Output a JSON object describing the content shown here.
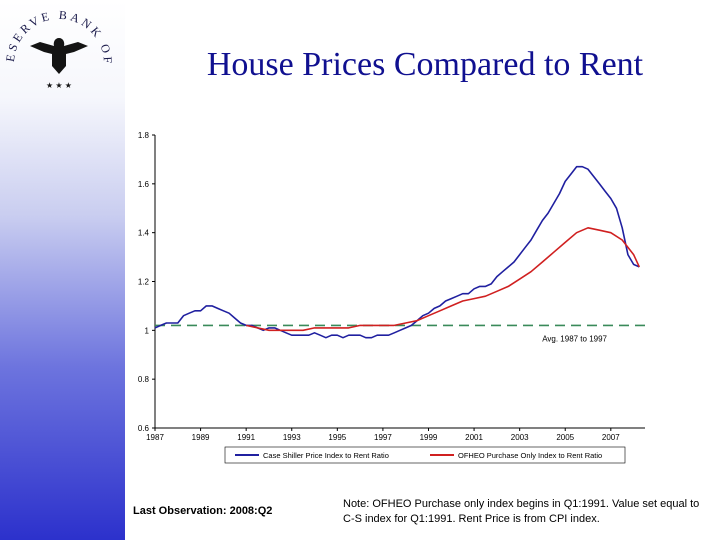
{
  "header": {
    "seal_text": "FEDERAL RESERVE BANK OF ST. LOUIS",
    "title": "House Prices Compared to Rent"
  },
  "chart_data": {
    "type": "line",
    "title": "House Prices Compared to Rent",
    "xlabel": "",
    "ylabel": "",
    "xlim": [
      1987,
      2008.5
    ],
    "ylim": [
      0.6,
      1.8
    ],
    "x_ticks": [
      "1987",
      "1989",
      "1991",
      "1993",
      "1995",
      "1997",
      "1999",
      "2001",
      "2003",
      "2005",
      "2007"
    ],
    "y_ticks": [
      "0.6",
      "0.8",
      "1",
      "1.2",
      "1.4",
      "1.6",
      "1.8"
    ],
    "y_tick_values": [
      0.6,
      0.8,
      1.0,
      1.2,
      1.4,
      1.6,
      1.8
    ],
    "series": [
      {
        "name": "Case Shiller Price Index to Rent Ratio",
        "color": "#2020a0",
        "points": [
          [
            1987.0,
            1.01
          ],
          [
            1987.25,
            1.02
          ],
          [
            1987.5,
            1.03
          ],
          [
            1987.75,
            1.03
          ],
          [
            1988.0,
            1.03
          ],
          [
            1988.25,
            1.06
          ],
          [
            1988.5,
            1.07
          ],
          [
            1988.75,
            1.08
          ],
          [
            1989.0,
            1.08
          ],
          [
            1989.25,
            1.1
          ],
          [
            1989.5,
            1.1
          ],
          [
            1989.75,
            1.09
          ],
          [
            1990.0,
            1.08
          ],
          [
            1990.25,
            1.07
          ],
          [
            1990.5,
            1.05
          ],
          [
            1990.75,
            1.03
          ],
          [
            1991.0,
            1.02
          ],
          [
            1991.25,
            1.02
          ],
          [
            1991.5,
            1.01
          ],
          [
            1991.75,
            1.0
          ],
          [
            1992.0,
            1.01
          ],
          [
            1992.25,
            1.01
          ],
          [
            1992.5,
            1.0
          ],
          [
            1992.75,
            0.99
          ],
          [
            1993.0,
            0.98
          ],
          [
            1993.25,
            0.98
          ],
          [
            1993.5,
            0.98
          ],
          [
            1993.75,
            0.98
          ],
          [
            1994.0,
            0.99
          ],
          [
            1994.25,
            0.98
          ],
          [
            1994.5,
            0.97
          ],
          [
            1994.75,
            0.98
          ],
          [
            1995.0,
            0.98
          ],
          [
            1995.25,
            0.97
          ],
          [
            1995.5,
            0.98
          ],
          [
            1995.75,
            0.98
          ],
          [
            1996.0,
            0.98
          ],
          [
            1996.25,
            0.97
          ],
          [
            1996.5,
            0.97
          ],
          [
            1996.75,
            0.98
          ],
          [
            1997.0,
            0.98
          ],
          [
            1997.25,
            0.98
          ],
          [
            1997.5,
            0.99
          ],
          [
            1997.75,
            1.0
          ],
          [
            1998.0,
            1.01
          ],
          [
            1998.25,
            1.02
          ],
          [
            1998.5,
            1.04
          ],
          [
            1998.75,
            1.06
          ],
          [
            1999.0,
            1.07
          ],
          [
            1999.25,
            1.09
          ],
          [
            1999.5,
            1.1
          ],
          [
            1999.75,
            1.12
          ],
          [
            2000.0,
            1.13
          ],
          [
            2000.25,
            1.14
          ],
          [
            2000.5,
            1.15
          ],
          [
            2000.75,
            1.15
          ],
          [
            2001.0,
            1.17
          ],
          [
            2001.25,
            1.18
          ],
          [
            2001.5,
            1.18
          ],
          [
            2001.75,
            1.19
          ],
          [
            2002.0,
            1.22
          ],
          [
            2002.25,
            1.24
          ],
          [
            2002.5,
            1.26
          ],
          [
            2002.75,
            1.28
          ],
          [
            2003.0,
            1.31
          ],
          [
            2003.25,
            1.34
          ],
          [
            2003.5,
            1.37
          ],
          [
            2003.75,
            1.41
          ],
          [
            2004.0,
            1.45
          ],
          [
            2004.25,
            1.48
          ],
          [
            2004.5,
            1.52
          ],
          [
            2004.75,
            1.56
          ],
          [
            2005.0,
            1.61
          ],
          [
            2005.25,
            1.64
          ],
          [
            2005.5,
            1.67
          ],
          [
            2005.75,
            1.67
          ],
          [
            2006.0,
            1.66
          ],
          [
            2006.25,
            1.63
          ],
          [
            2006.5,
            1.6
          ],
          [
            2006.75,
            1.57
          ],
          [
            2007.0,
            1.54
          ],
          [
            2007.25,
            1.5
          ],
          [
            2007.5,
            1.42
          ],
          [
            2007.75,
            1.31
          ],
          [
            2008.0,
            1.27
          ],
          [
            2008.25,
            1.26
          ]
        ]
      },
      {
        "name": "OFHEO Purchase Only Index to Rent Ratio",
        "color": "#d02020",
        "points": [
          [
            1991.0,
            1.02
          ],
          [
            1991.5,
            1.01
          ],
          [
            1992.0,
            1.0
          ],
          [
            1992.5,
            1.0
          ],
          [
            1993.0,
            1.0
          ],
          [
            1993.5,
            1.0
          ],
          [
            1994.0,
            1.01
          ],
          [
            1994.5,
            1.01
          ],
          [
            1995.0,
            1.01
          ],
          [
            1995.5,
            1.01
          ],
          [
            1996.0,
            1.02
          ],
          [
            1996.5,
            1.02
          ],
          [
            1997.0,
            1.02
          ],
          [
            1997.5,
            1.02
          ],
          [
            1998.0,
            1.03
          ],
          [
            1998.5,
            1.04
          ],
          [
            1999.0,
            1.06
          ],
          [
            1999.5,
            1.08
          ],
          [
            2000.0,
            1.1
          ],
          [
            2000.5,
            1.12
          ],
          [
            2001.0,
            1.13
          ],
          [
            2001.5,
            1.14
          ],
          [
            2002.0,
            1.16
          ],
          [
            2002.5,
            1.18
          ],
          [
            2003.0,
            1.21
          ],
          [
            2003.5,
            1.24
          ],
          [
            2004.0,
            1.28
          ],
          [
            2004.5,
            1.32
          ],
          [
            2005.0,
            1.36
          ],
          [
            2005.5,
            1.4
          ],
          [
            2006.0,
            1.42
          ],
          [
            2006.5,
            1.41
          ],
          [
            2007.0,
            1.4
          ],
          [
            2007.5,
            1.37
          ],
          [
            2008.0,
            1.31
          ],
          [
            2008.25,
            1.26
          ]
        ]
      }
    ],
    "reference_line": {
      "label": "Avg. 1987 to 1997",
      "value": 1.02,
      "color": "#3a8a5a"
    },
    "legend_position": "bottom"
  },
  "footer": {
    "last_observation": "Last Observation: 2008:Q2",
    "note": "Note: OFHEO Purchase only index begins in Q1:1991.  Value set equal to C-S index for Q1:1991.  Rent Price is from CPI index."
  }
}
